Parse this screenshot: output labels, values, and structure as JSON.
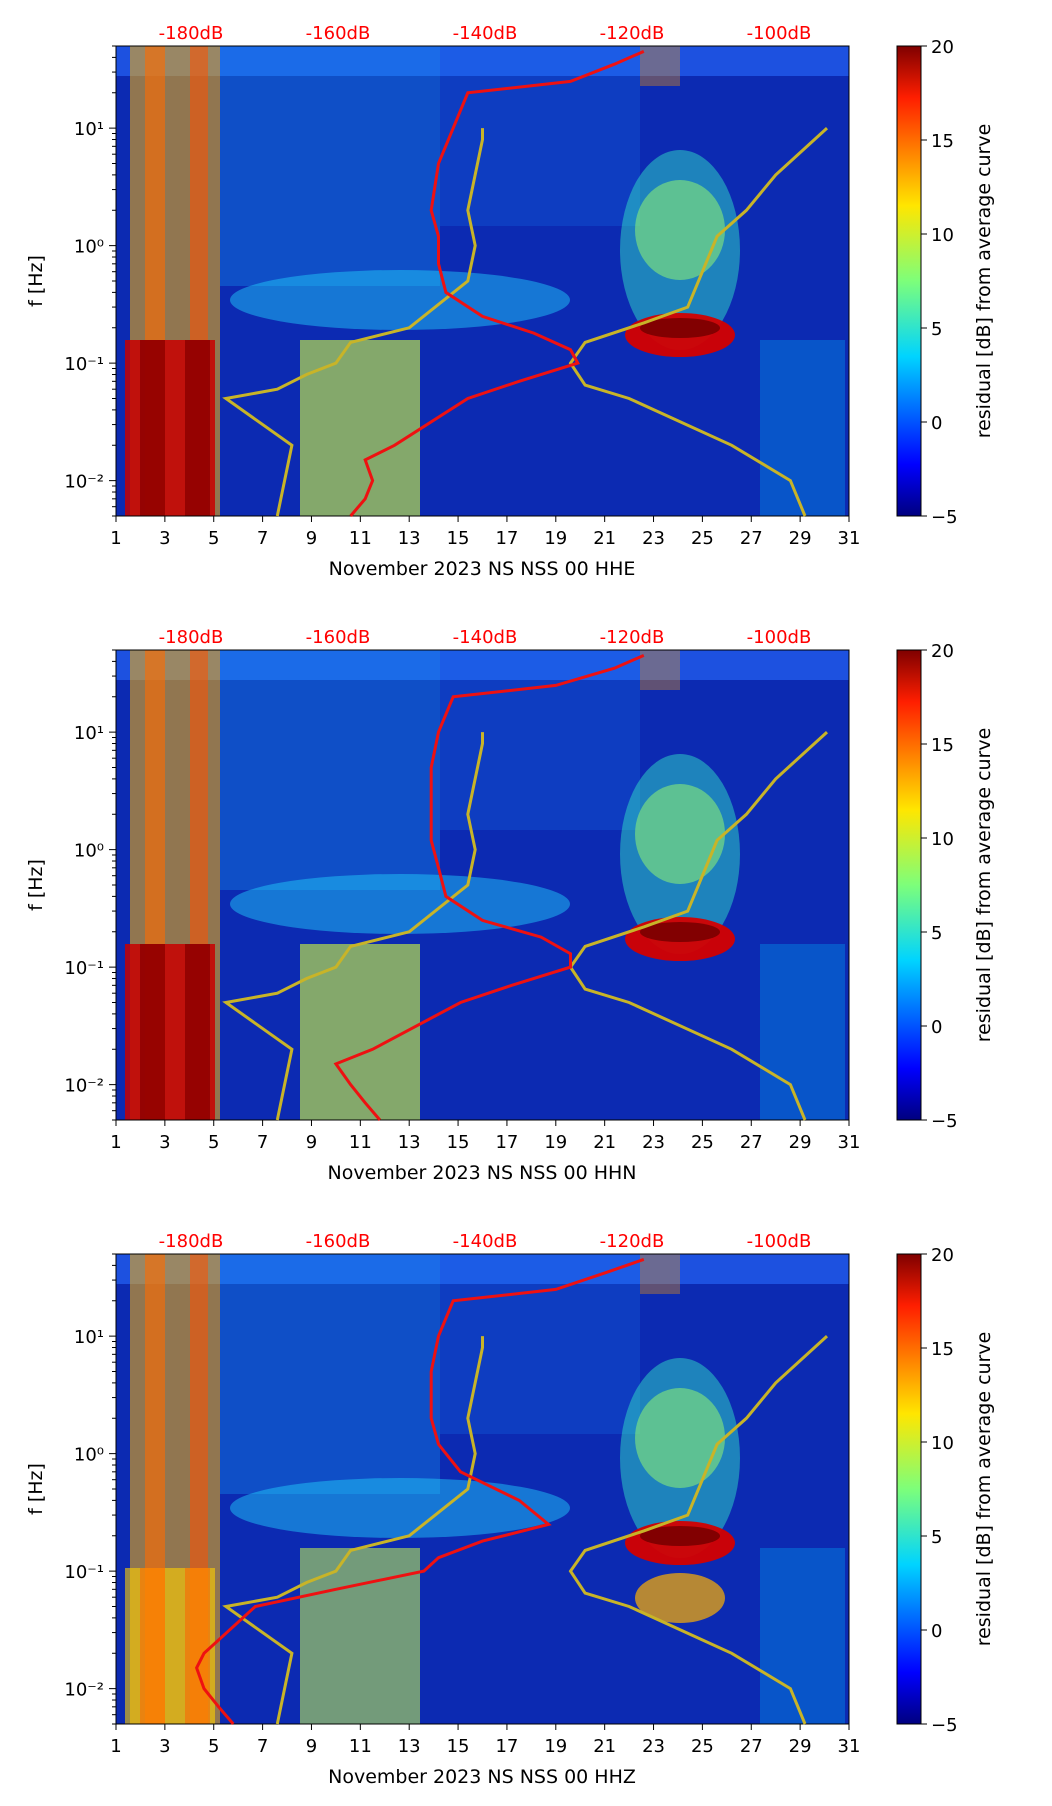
{
  "colors": {
    "top_label": "#ff0000",
    "avg_curve": "#ee1111",
    "nlnm_nhnm": "#c8b428"
  },
  "chart_data": [
    {
      "type": "heatmap",
      "title": "",
      "xlabel": "November 2023 NS NSS 00 HHE",
      "ylabel": "f [Hz]",
      "xlim": [
        1,
        31
      ],
      "ylim": [
        0.005,
        50
      ],
      "yscale": "log",
      "xticks": [
        1,
        3,
        5,
        7,
        9,
        11,
        13,
        15,
        17,
        19,
        21,
        23,
        25,
        27,
        29,
        31
      ],
      "yticks": [
        {
          "value": 0.01,
          "label": "10⁻²"
        },
        {
          "value": 0.1,
          "label": "10⁻¹"
        },
        {
          "value": 1,
          "label": "10⁰"
        },
        {
          "value": 10,
          "label": "10¹"
        }
      ],
      "top_axis_labels": [
        "-180dB",
        "-160dB",
        "-140dB",
        "-120dB",
        "-100dB"
      ],
      "colorbar": {
        "label": "residual [dB] from average curve",
        "range": [
          -5,
          20
        ],
        "ticks": [
          -5,
          0,
          5,
          10,
          15,
          20
        ]
      },
      "series": [
        {
          "name": "average PSD",
          "x_dB": [
            -158,
            -156,
            -155,
            -156,
            -152,
            -142,
            -135,
            -127,
            -128,
            -133,
            -140,
            -145,
            -146,
            -146,
            -147,
            -146,
            -144,
            -142,
            -128,
            -122,
            -118
          ],
          "f_hz": [
            0.005,
            0.007,
            0.01,
            0.015,
            0.02,
            0.05,
            0.07,
            0.1,
            0.13,
            0.18,
            0.25,
            0.4,
            0.7,
            1.2,
            2,
            5,
            10,
            20,
            25,
            35,
            45
          ]
        }
      ]
    },
    {
      "type": "heatmap",
      "title": "",
      "xlabel": "November 2023 NS NSS 00 HHN",
      "ylabel": "f [Hz]",
      "xlim": [
        1,
        31
      ],
      "ylim": [
        0.005,
        50
      ],
      "yscale": "log",
      "xticks": [
        1,
        3,
        5,
        7,
        9,
        11,
        13,
        15,
        17,
        19,
        21,
        23,
        25,
        27,
        29,
        31
      ],
      "yticks": [
        {
          "value": 0.01,
          "label": "10⁻²"
        },
        {
          "value": 0.1,
          "label": "10⁻¹"
        },
        {
          "value": 1,
          "label": "10⁰"
        },
        {
          "value": 10,
          "label": "10¹"
        }
      ],
      "top_axis_labels": [
        "-180dB",
        "-160dB",
        "-140dB",
        "-120dB",
        "-100dB"
      ],
      "colorbar": {
        "label": "residual [dB] from average curve",
        "range": [
          -5,
          20
        ],
        "ticks": [
          -5,
          0,
          5,
          10,
          15,
          20
        ]
      },
      "series": [
        {
          "name": "average PSD",
          "x_dB": [
            -154,
            -156,
            -158,
            -160,
            -155,
            -143,
            -136,
            -128,
            -128,
            -132,
            -140,
            -145,
            -146,
            -147,
            -147,
            -147,
            -146,
            -144,
            -130,
            -122,
            -118
          ],
          "f_hz": [
            0.005,
            0.007,
            0.01,
            0.015,
            0.02,
            0.05,
            0.07,
            0.1,
            0.13,
            0.18,
            0.25,
            0.4,
            0.7,
            1.2,
            2,
            5,
            10,
            20,
            25,
            35,
            45
          ]
        }
      ]
    },
    {
      "type": "heatmap",
      "title": "",
      "xlabel": "November 2023 NS NSS 00 HHZ",
      "ylabel": "f [Hz]",
      "xlim": [
        1,
        31
      ],
      "ylim": [
        0.005,
        50
      ],
      "yscale": "log",
      "xticks": [
        1,
        3,
        5,
        7,
        9,
        11,
        13,
        15,
        17,
        19,
        21,
        23,
        25,
        27,
        29,
        31
      ],
      "yticks": [
        {
          "value": 0.01,
          "label": "10⁻²"
        },
        {
          "value": 0.1,
          "label": "10⁻¹"
        },
        {
          "value": 1,
          "label": "10⁰"
        },
        {
          "value": 10,
          "label": "10¹"
        }
      ],
      "top_axis_labels": [
        "-180dB",
        "-160dB",
        "-140dB",
        "-120dB",
        "-100dB"
      ],
      "colorbar": {
        "label": "residual [dB] from average curve",
        "range": [
          -5,
          20
        ],
        "ticks": [
          -5,
          0,
          5,
          10,
          15,
          20
        ]
      },
      "series": [
        {
          "name": "average PSD",
          "x_dB": [
            -174,
            -176,
            -178,
            -179,
            -178,
            -171,
            -160,
            -148,
            -146,
            -140,
            -131,
            -135,
            -143,
            -146,
            -147,
            -147,
            -146,
            -144,
            -130,
            -123,
            -118
          ],
          "f_hz": [
            0.005,
            0.007,
            0.01,
            0.015,
            0.02,
            0.05,
            0.07,
            0.1,
            0.13,
            0.18,
            0.25,
            0.4,
            0.7,
            1.2,
            2,
            5,
            10,
            20,
            25,
            35,
            45
          ]
        }
      ]
    }
  ],
  "model_curves": {
    "NLNM": {
      "x_dB": [
        -168,
        -167,
        -166,
        -175,
        -168,
        -164,
        -160,
        -158,
        -150,
        -142,
        -141,
        -142,
        -140,
        -140
      ],
      "f_hz": [
        0.005,
        0.01,
        0.02,
        0.05,
        0.06,
        0.08,
        0.1,
        0.15,
        0.2,
        0.5,
        1,
        2,
        8,
        10
      ]
    },
    "NHNM": {
      "x_dB": [
        -96,
        -98,
        -106,
        -120,
        -126,
        -128,
        -126,
        -118,
        -112,
        -108,
        -104,
        -100,
        -93
      ],
      "f_hz": [
        0.005,
        0.01,
        0.02,
        0.05,
        0.065,
        0.1,
        0.15,
        0.22,
        0.3,
        1.2,
        2,
        4,
        10
      ]
    }
  }
}
